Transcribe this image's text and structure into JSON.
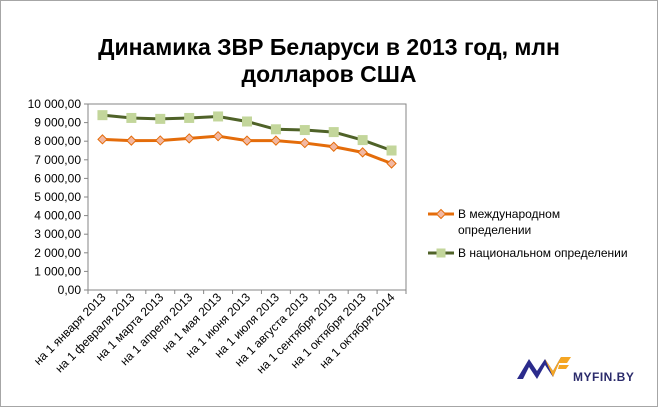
{
  "chart_data": {
    "type": "line",
    "title_lines": [
      "Динамика ЗВР Беларуси в 2013 год, млн",
      "долларов США"
    ],
    "categories": [
      "на 1 января 2013",
      "на 1 февраля 2013",
      "на 1 марта 2013",
      "на 1 апреля 2013",
      "на 1 мая 2013",
      "на 1 июня 2013",
      "на 1 июля 2013",
      "на 1 августа 2013",
      "на 1 сентября 2013",
      "на 1 октября 2013",
      "на 1 октября 2014"
    ],
    "y_ticks": [
      "0,00",
      "1 000,00",
      "2 000,00",
      "3 000,00",
      "4 000,00",
      "5 000,00",
      "6 000,00",
      "7 000,00",
      "8 000,00",
      "9 000,00",
      "10 000,00"
    ],
    "ylim": [
      0,
      10000
    ],
    "y_step": 1000,
    "series": [
      {
        "name": "В международном определении",
        "color": "#e46c0a",
        "marker": "diamond",
        "marker_color": "#f2b8a2",
        "values": [
          8100,
          8030,
          8040,
          8150,
          8270,
          8030,
          8030,
          7900,
          7700,
          7400,
          6800
        ]
      },
      {
        "name": "В национальном определении",
        "color": "#4f6228",
        "marker": "square",
        "marker_color": "#c3d69b",
        "values": [
          9400,
          9250,
          9200,
          9250,
          9330,
          9060,
          8640,
          8600,
          8490,
          8060,
          7500
        ]
      }
    ],
    "grid": false,
    "legend_position": "right"
  },
  "logo": {
    "text": "MYFIN.BY"
  }
}
